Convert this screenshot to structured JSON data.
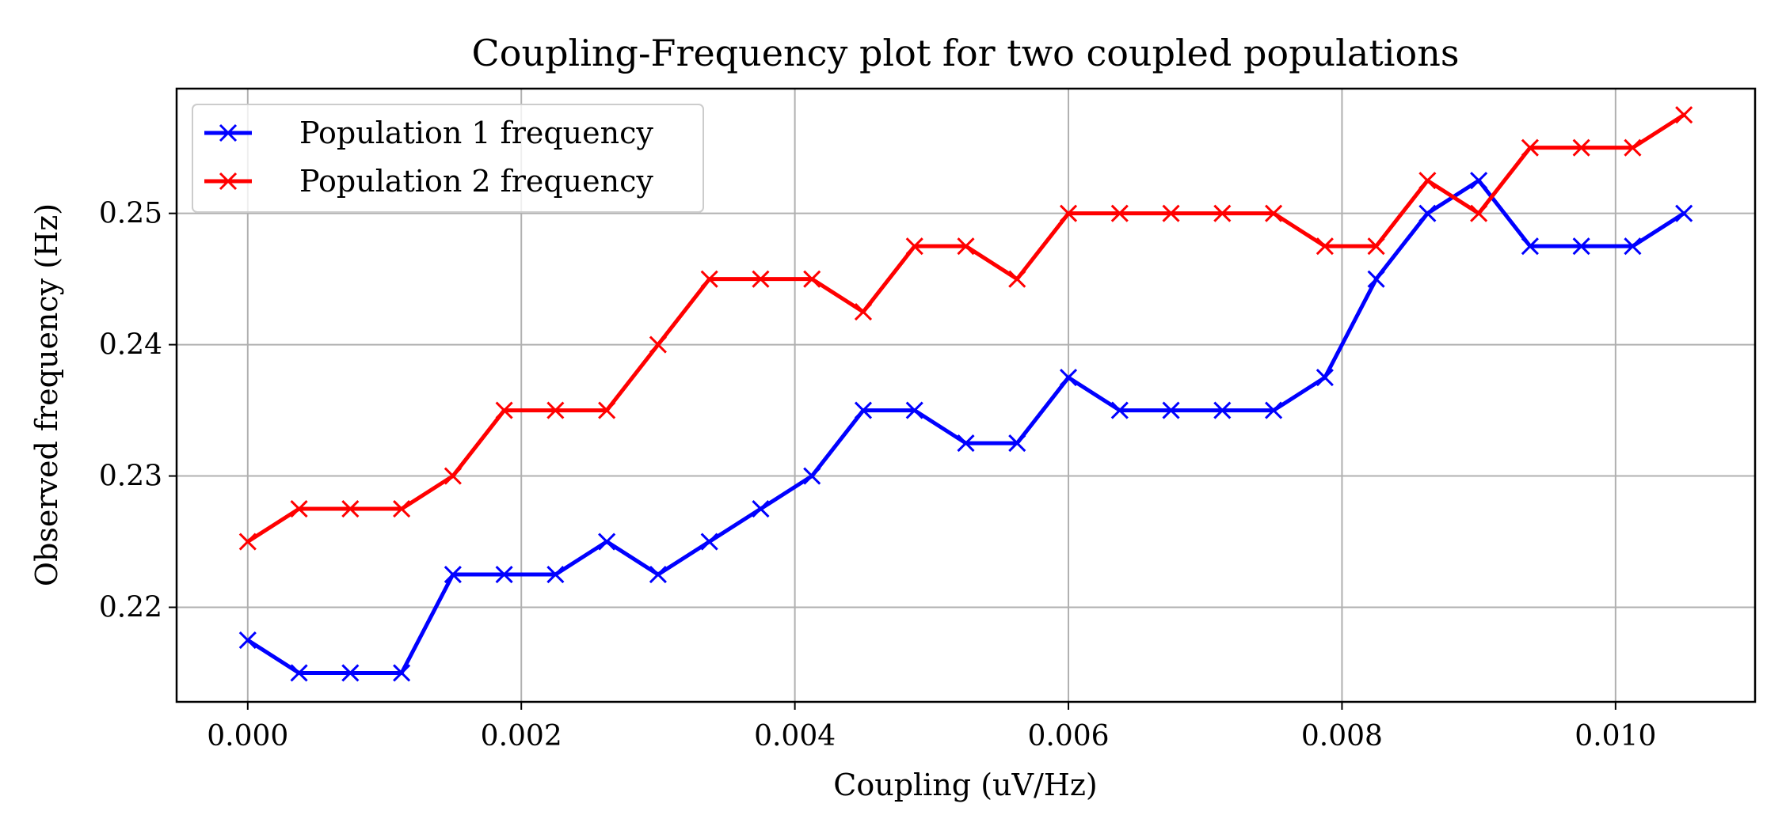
{
  "chart_data": {
    "type": "line",
    "title": "Coupling-Frequency plot for two coupled populations",
    "xlabel": "Coupling (uV/Hz)",
    "ylabel": "Observed frequency (Hz)",
    "xlim": [
      -0.00052,
      0.01102
    ],
    "ylim": [
      0.2128,
      0.2595
    ],
    "xticks": [
      0.0,
      0.002,
      0.004,
      0.006,
      0.008,
      0.01
    ],
    "xtick_labels": [
      "0.000",
      "0.002",
      "0.004",
      "0.006",
      "0.008",
      "0.010"
    ],
    "yticks": [
      0.22,
      0.23,
      0.24,
      0.25
    ],
    "ytick_labels": [
      "0.22",
      "0.23",
      "0.24",
      "0.25"
    ],
    "grid": true,
    "legend_position": "top-left",
    "marker": "x",
    "x": [
      0.0,
      0.000375,
      0.00075,
      0.001125,
      0.0015,
      0.001875,
      0.00225,
      0.002625,
      0.003,
      0.003375,
      0.00375,
      0.004125,
      0.0045,
      0.004875,
      0.00525,
      0.005625,
      0.006,
      0.006375,
      0.00675,
      0.007125,
      0.0075,
      0.007875,
      0.00825,
      0.008625,
      0.009,
      0.009375,
      0.00975,
      0.010125,
      0.0105
    ],
    "series": [
      {
        "name": "Population 1 frequency",
        "color": "#0000ff",
        "values": [
          0.2175,
          0.215,
          0.215,
          0.215,
          0.2225,
          0.2225,
          0.2225,
          0.225,
          0.2225,
          0.225,
          0.2275,
          0.23,
          0.235,
          0.235,
          0.2325,
          0.2325,
          0.2375,
          0.235,
          0.235,
          0.235,
          0.235,
          0.2375,
          0.245,
          0.25,
          0.2525,
          0.2475,
          0.2475,
          0.2475,
          0.25
        ]
      },
      {
        "name": "Population 2 frequency",
        "color": "#ff0000",
        "values": [
          0.225,
          0.2275,
          0.2275,
          0.2275,
          0.23,
          0.235,
          0.235,
          0.235,
          0.24,
          0.245,
          0.245,
          0.245,
          0.2425,
          0.2475,
          0.2475,
          0.245,
          0.25,
          0.25,
          0.25,
          0.25,
          0.25,
          0.2475,
          0.2475,
          0.2525,
          0.25,
          0.255,
          0.255,
          0.255,
          0.2575
        ]
      }
    ]
  }
}
